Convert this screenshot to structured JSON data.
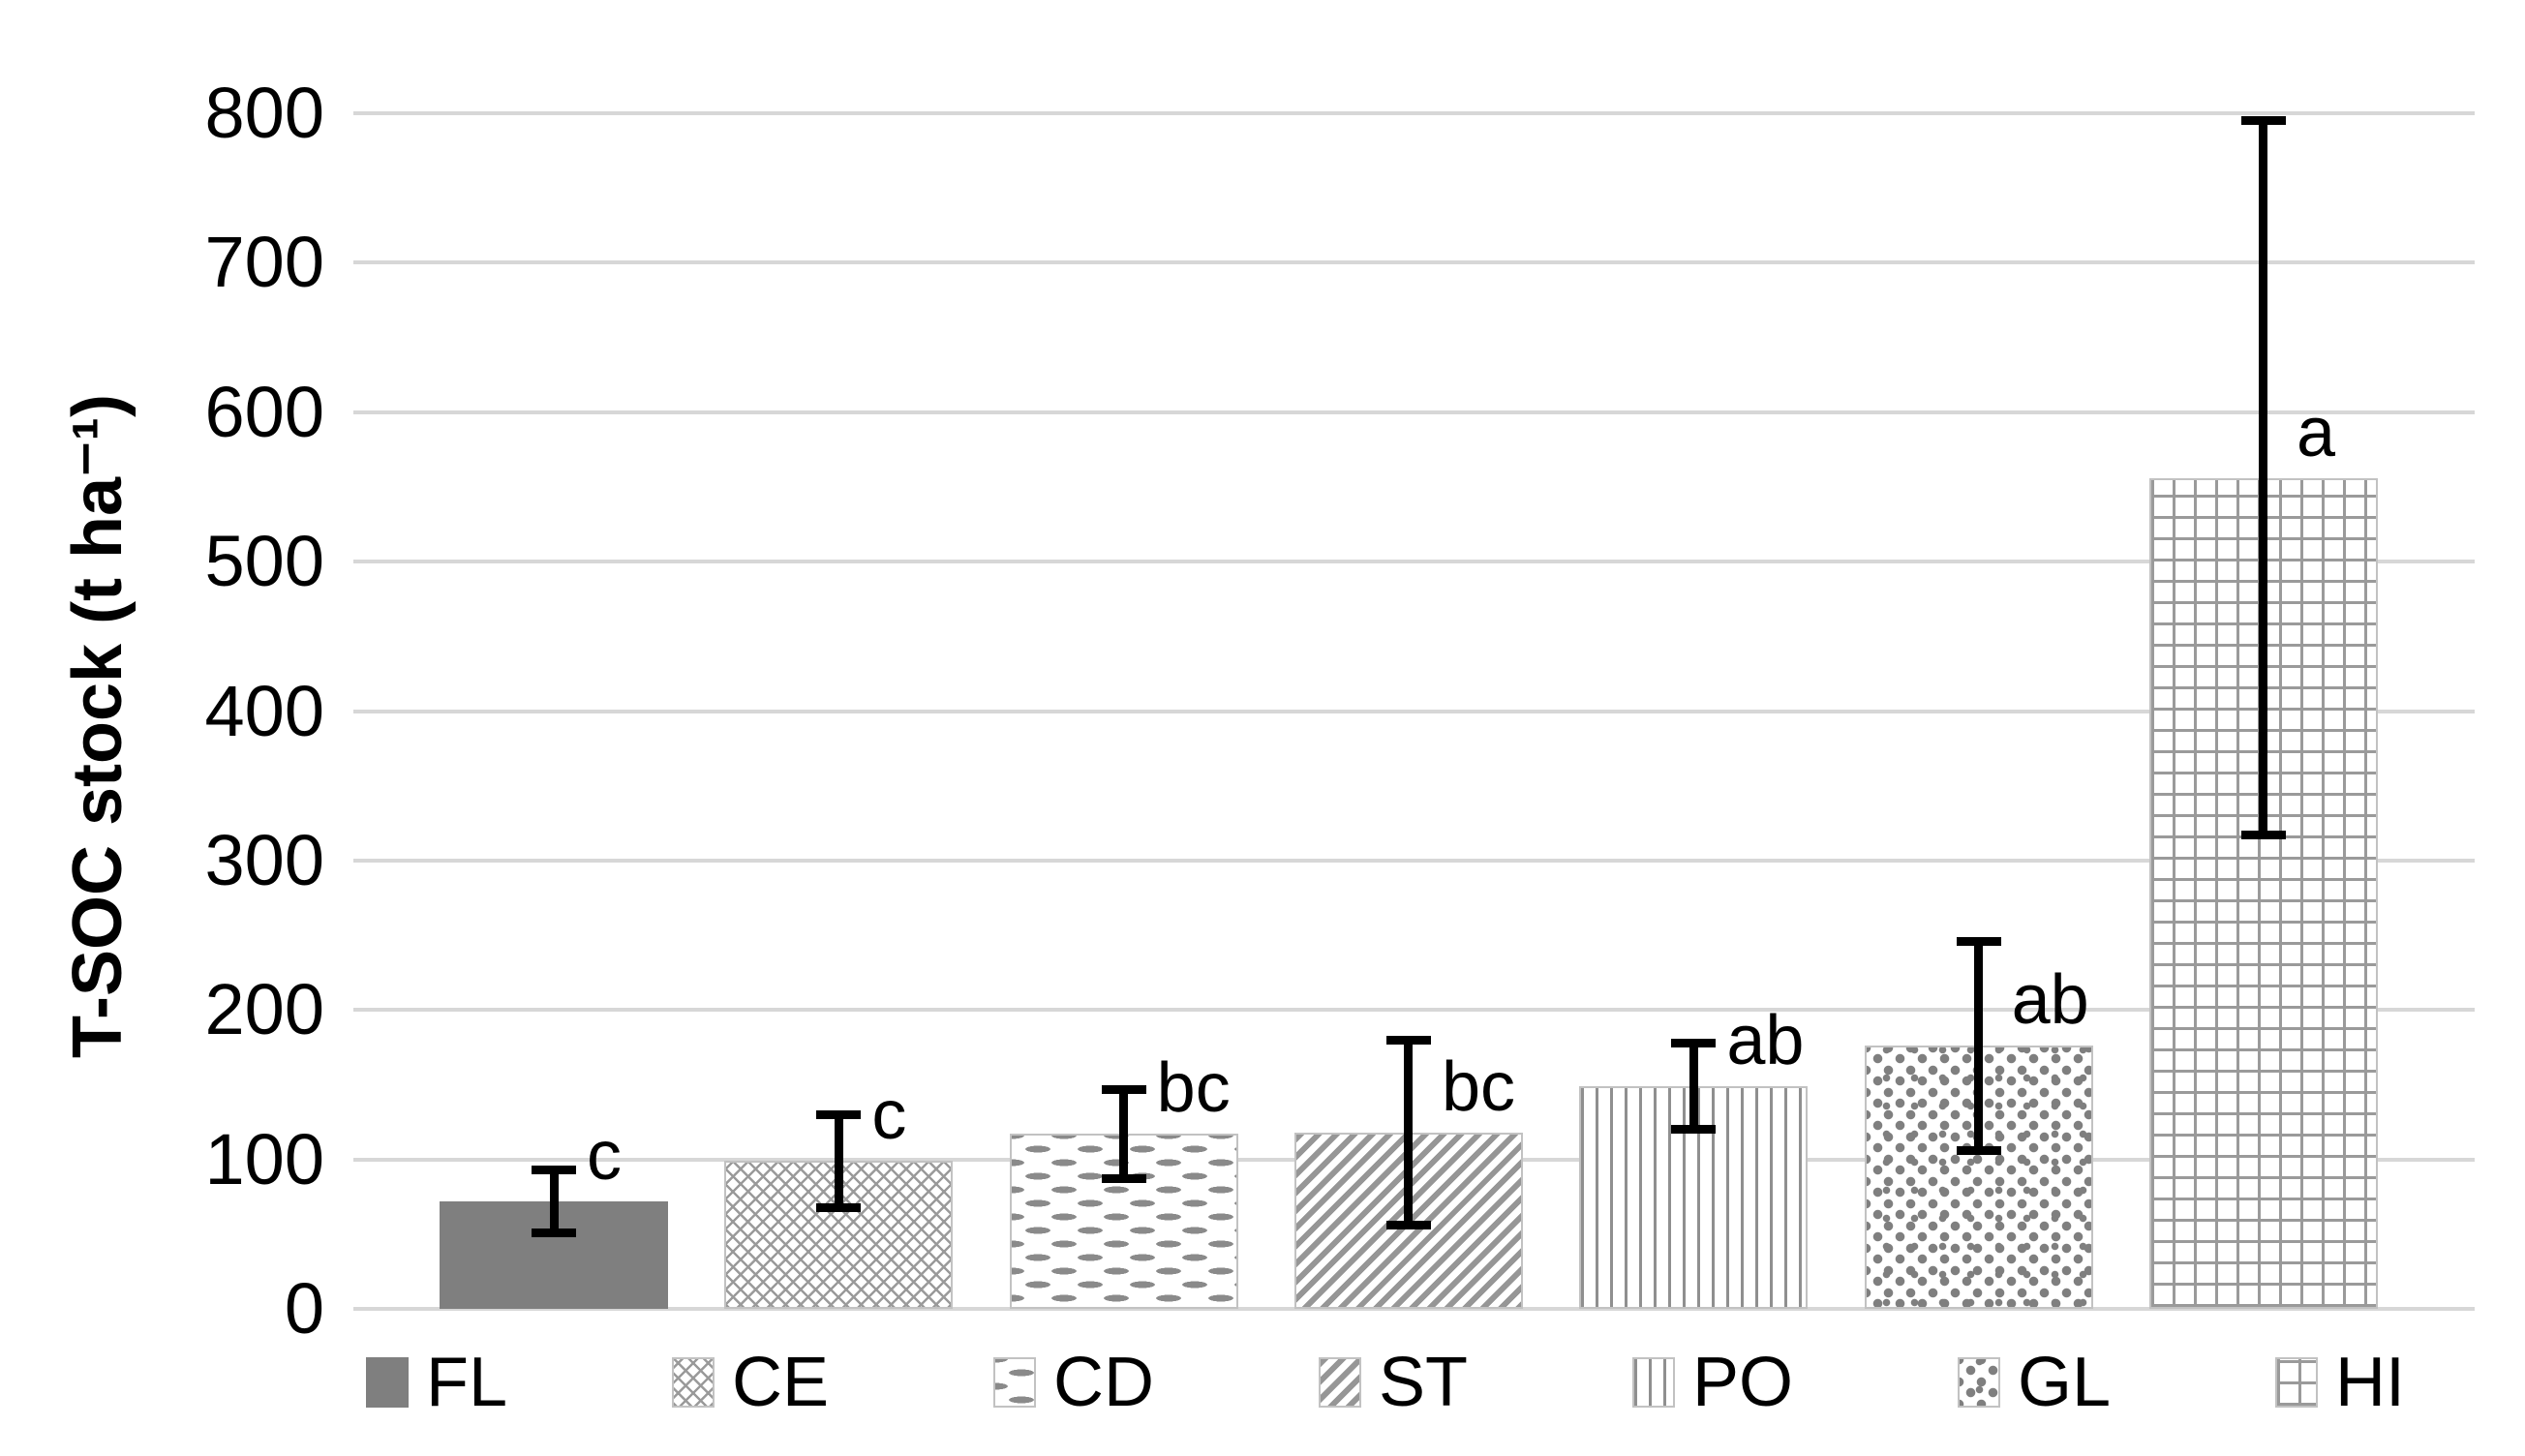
{
  "figure": {
    "background": "#ffffff"
  },
  "y_axis": {
    "label": "T-SOC stock (t ha⁻¹)",
    "tick_labels": [
      "0",
      "100",
      "200",
      "300",
      "400",
      "500",
      "600",
      "700",
      "800"
    ]
  },
  "legend": {
    "items": [
      {
        "label": "FL",
        "pattern": "solid-gray"
      },
      {
        "label": "CE",
        "pattern": "diamond-lattice"
      },
      {
        "label": "CD",
        "pattern": "horizontal-dashes"
      },
      {
        "label": "ST",
        "pattern": "diagonal-stripes"
      },
      {
        "label": "PO",
        "pattern": "vertical-lines"
      },
      {
        "label": "GL",
        "pattern": "speckled"
      },
      {
        "label": "HI",
        "pattern": "grid-squares"
      }
    ]
  },
  "chart_data": {
    "type": "bar",
    "categories": [
      "FL",
      "CE",
      "CD",
      "ST",
      "PO",
      "GL",
      "HI"
    ],
    "values": [
      72,
      99,
      117,
      118,
      149,
      176,
      556
    ],
    "error_low": [
      51,
      68,
      87,
      56,
      120,
      106,
      317
    ],
    "error_high": [
      93,
      130,
      147,
      180,
      178,
      246,
      795
    ],
    "sig_letters": [
      "c",
      "c",
      "bc",
      "bc",
      "ab",
      "ab",
      "a"
    ],
    "patterns": [
      "solid-gray",
      "diamond-lattice",
      "horizontal-dashes",
      "diagonal-stripes",
      "vertical-lines",
      "speckled",
      "grid-squares"
    ],
    "title": "",
    "xlabel": "",
    "ylabel": "T-SOC stock (t ha⁻¹)",
    "ylim": [
      0,
      800
    ],
    "ytick_step": 100,
    "grid": true,
    "legend_position": "bottom",
    "colors": {
      "solid_bar": "#7f7f7f",
      "pattern_stroke": "#8f8f8f",
      "gridline": "#d7d7d7",
      "error_bar": "#000000",
      "text": "#000000"
    }
  }
}
